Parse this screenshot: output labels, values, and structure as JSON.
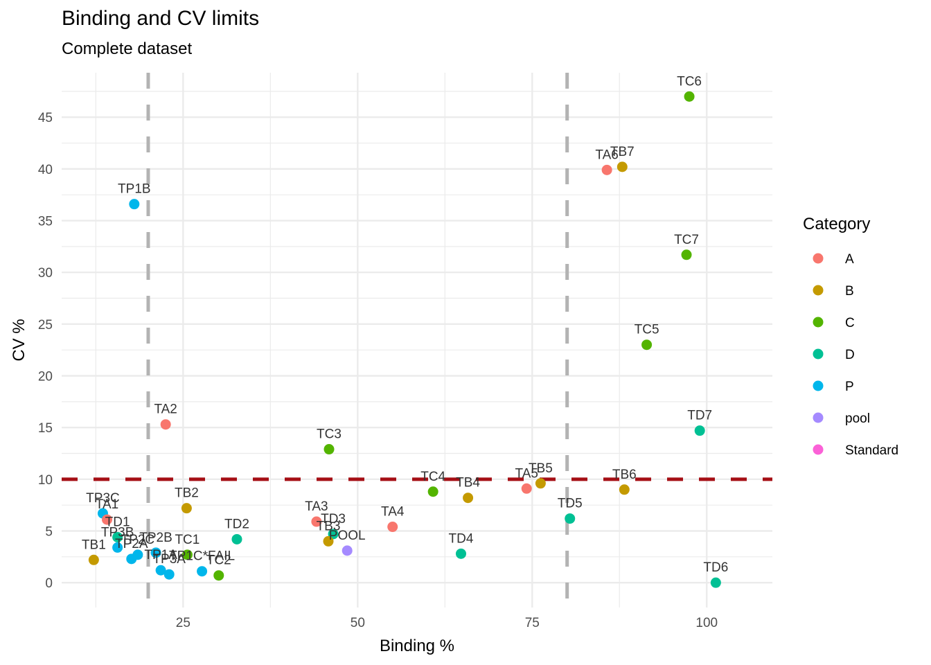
{
  "chart_data": {
    "type": "scatter",
    "title": "Binding and CV limits",
    "subtitle": "Complete dataset",
    "xlabel": "Binding %",
    "ylabel": "CV %",
    "xlim": [
      7.6,
      109.4
    ],
    "ylim": [
      -2.4,
      49.3
    ],
    "xticks": [
      25,
      50,
      75,
      100
    ],
    "yticks": [
      0,
      5,
      10,
      15,
      20,
      25,
      30,
      35,
      40,
      45
    ],
    "grid": true,
    "legend": {
      "title": "Category",
      "position": "right",
      "entries": [
        {
          "name": "A",
          "color": "#F8766D"
        },
        {
          "name": "B",
          "color": "#C49A00"
        },
        {
          "name": "C",
          "color": "#53B400"
        },
        {
          "name": "D",
          "color": "#00C094"
        },
        {
          "name": "P",
          "color": "#00B6EB"
        },
        {
          "name": "pool",
          "color": "#A58AFF"
        },
        {
          "name": "Standard",
          "color": "#FB61D7"
        }
      ]
    },
    "reference_lines": [
      {
        "orientation": "vertical",
        "value": 20,
        "style": "dashed",
        "color": "#B3B3B3"
      },
      {
        "orientation": "vertical",
        "value": 80,
        "style": "dashed",
        "color": "#B3B3B3"
      },
      {
        "orientation": "horizontal",
        "value": 10,
        "style": "dashed",
        "color": "#A50F15"
      }
    ],
    "points": [
      {
        "label": "TC6",
        "category": "C",
        "x": 97.5,
        "y": 47.0
      },
      {
        "label": "TA6",
        "category": "A",
        "x": 85.7,
        "y": 39.9
      },
      {
        "label": "TB7",
        "category": "B",
        "x": 87.9,
        "y": 40.2
      },
      {
        "label": "TP1B",
        "category": "P",
        "x": 18.0,
        "y": 36.6
      },
      {
        "label": "TC7",
        "category": "C",
        "x": 97.1,
        "y": 31.7
      },
      {
        "label": "TC5",
        "category": "C",
        "x": 91.4,
        "y": 23.0
      },
      {
        "label": "TA2",
        "category": "A",
        "x": 22.5,
        "y": 15.3
      },
      {
        "label": "TD7",
        "category": "D",
        "x": 99.0,
        "y": 14.7
      },
      {
        "label": "TC3",
        "category": "C",
        "x": 45.9,
        "y": 12.9
      },
      {
        "label": "TA5",
        "category": "A",
        "x": 74.2,
        "y": 9.1
      },
      {
        "label": "TB5",
        "category": "B",
        "x": 76.2,
        "y": 9.6
      },
      {
        "label": "TB6",
        "category": "B",
        "x": 88.2,
        "y": 9.0
      },
      {
        "label": "TC4",
        "category": "C",
        "x": 60.8,
        "y": 8.8
      },
      {
        "label": "TB4",
        "category": "B",
        "x": 65.8,
        "y": 8.2
      },
      {
        "label": "TB2",
        "category": "B",
        "x": 25.5,
        "y": 7.2
      },
      {
        "label": "TP3C",
        "category": "P",
        "x": 13.5,
        "y": 6.7
      },
      {
        "label": "TD5",
        "category": "D",
        "x": 80.4,
        "y": 6.2
      },
      {
        "label": "TA1",
        "category": "A",
        "x": 14.1,
        "y": 6.1
      },
      {
        "label": "TA3",
        "category": "A",
        "x": 44.1,
        "y": 5.9
      },
      {
        "label": "TA4",
        "category": "A",
        "x": 55.0,
        "y": 5.4
      },
      {
        "label": "TD3",
        "category": "D",
        "x": 46.5,
        "y": 4.7
      },
      {
        "label": "TD1",
        "category": "D",
        "x": 15.6,
        "y": 4.4
      },
      {
        "label": "TD2",
        "category": "D",
        "x": 32.7,
        "y": 4.2
      },
      {
        "label": "TB3",
        "category": "B",
        "x": 45.8,
        "y": 4.0
      },
      {
        "label": "TP3B",
        "category": "P",
        "x": 15.6,
        "y": 3.4
      },
      {
        "label": "POOL",
        "category": "pool",
        "x": 48.5,
        "y": 3.1
      },
      {
        "label": "TD4",
        "category": "D",
        "x": 64.8,
        "y": 2.8
      },
      {
        "label": "TB1",
        "category": "B",
        "x": 12.2,
        "y": 2.2
      },
      {
        "label": "TP2A",
        "category": "P",
        "x": 17.6,
        "y": 2.3
      },
      {
        "label": "TP2C",
        "category": "P",
        "x": 18.5,
        "y": 2.7
      },
      {
        "label": "TP2B",
        "category": "P",
        "x": 21.1,
        "y": 2.9
      },
      {
        "label": "TC1",
        "category": "C",
        "x": 25.6,
        "y": 2.7
      },
      {
        "label": "TP1A",
        "category": "P",
        "x": 21.8,
        "y": 1.2
      },
      {
        "label": "TP3A",
        "category": "P",
        "x": 23.0,
        "y": 0.8
      },
      {
        "label": "TP1C*FAIL",
        "category": "P",
        "x": 27.7,
        "y": 1.1
      },
      {
        "label": "TC2",
        "category": "C",
        "x": 30.1,
        "y": 0.7
      },
      {
        "label": "TD6",
        "category": "D",
        "x": 101.3,
        "y": 0.0
      }
    ]
  }
}
